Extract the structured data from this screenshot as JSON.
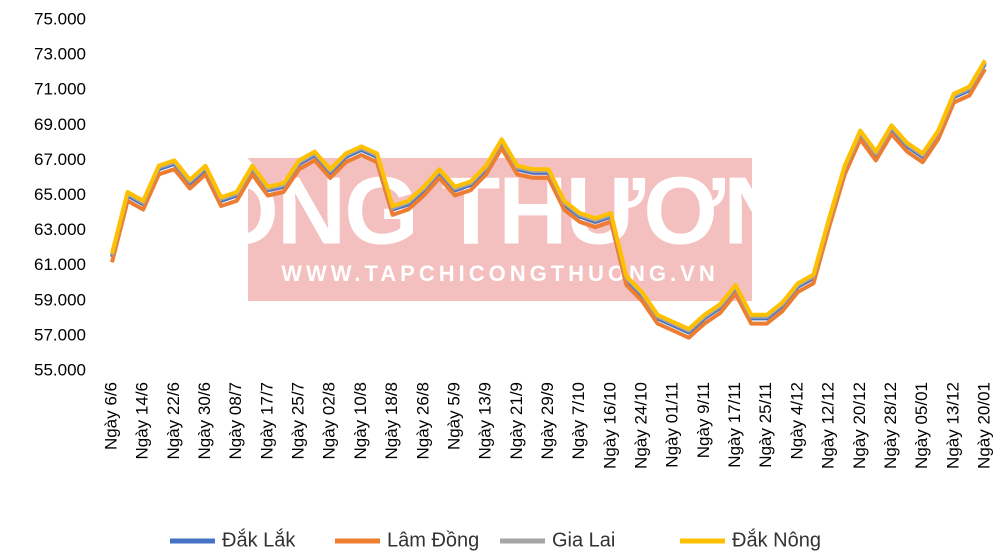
{
  "chart_data": {
    "type": "line",
    "watermark": {
      "title": "CÔNG THƯƠNG",
      "url": "WWW.TAPCHICONGTHUONG.VN"
    },
    "categories": [
      "Ngày 6/6",
      null,
      "Ngày 14/6",
      null,
      "Ngày 22/6",
      null,
      "Ngày 30/6",
      null,
      "Ngày 08/7",
      null,
      "Ngày 17/7",
      null,
      "Ngày 25/7",
      null,
      "Ngày 02/8",
      null,
      "Ngày 10/8",
      null,
      "Ngày 18/8",
      null,
      "Ngày 26/8",
      null,
      "Ngày 5/9",
      null,
      "Ngày 13/9",
      null,
      "Ngày 21/9",
      null,
      "Ngày 29/9",
      null,
      "Ngày 7/10",
      null,
      "Ngày 16/10",
      null,
      "Ngày 24/10",
      null,
      "Ngày 01/11",
      null,
      "Ngày 9/11",
      null,
      "Ngày 17/11",
      null,
      "Ngày 25/11",
      null,
      "Ngày 4/12",
      null,
      "Ngày 12/12",
      null,
      "Ngày 20/12",
      null,
      "Ngày 28/12",
      null,
      "Ngày 05/01",
      null,
      "Ngày 13/12",
      null,
      "Ngày 20/01"
    ],
    "series": [
      {
        "name": "Đắk Lắk",
        "color": "#4472c4",
        "values": [
          61500,
          65000,
          64500,
          66500,
          66800,
          65700,
          66500,
          64700,
          65000,
          66500,
          65300,
          65500,
          66800,
          67300,
          66300,
          67200,
          67600,
          67200,
          64200,
          64500,
          65300,
          66300,
          65300,
          65600,
          66500,
          68000,
          66500,
          66300,
          66300,
          64500,
          63800,
          63500,
          63800,
          60200,
          59300,
          58000,
          57600,
          57200,
          58000,
          58600,
          59700,
          58000,
          58000,
          58700,
          59800,
          60300,
          63500,
          66500,
          68500,
          67300,
          68800,
          67800,
          67200,
          68500,
          70600,
          71000,
          72500
        ]
      },
      {
        "name": "Lâm Đồng",
        "color": "#ed7d31",
        "values": [
          61200,
          64700,
          64200,
          66200,
          66500,
          65400,
          66200,
          64400,
          64700,
          66200,
          65000,
          65200,
          66500,
          67000,
          66000,
          66900,
          67300,
          66900,
          63900,
          64200,
          65000,
          66000,
          65000,
          65300,
          66200,
          67700,
          66200,
          66000,
          66000,
          64200,
          63500,
          63200,
          63500,
          59900,
          59000,
          57700,
          57300,
          56900,
          57700,
          58300,
          59400,
          57700,
          57700,
          58400,
          59500,
          60000,
          63200,
          66200,
          68200,
          67000,
          68500,
          67500,
          66900,
          68200,
          70300,
          70700,
          72200
        ]
      },
      {
        "name": "Gia Lai",
        "color": "#a5a5a5",
        "values": [
          61600,
          65100,
          64600,
          66600,
          66900,
          65800,
          66600,
          64800,
          65100,
          66600,
          65400,
          65600,
          66900,
          67400,
          66400,
          67300,
          67700,
          67300,
          64300,
          64600,
          65400,
          66400,
          65400,
          65700,
          66600,
          68100,
          66600,
          66400,
          66400,
          64600,
          63900,
          63600,
          63900,
          60300,
          59400,
          58100,
          57700,
          57300,
          58100,
          58700,
          59800,
          58100,
          58100,
          58800,
          59900,
          60400,
          63600,
          66600,
          68600,
          67400,
          68900,
          67900,
          67300,
          68600,
          70700,
          71100,
          72600
        ]
      },
      {
        "name": "Đắk Nông",
        "color": "#ffc000",
        "values": [
          61700,
          65200,
          64700,
          66700,
          67000,
          65900,
          66700,
          64900,
          65200,
          66700,
          65500,
          65700,
          67000,
          67500,
          66500,
          67400,
          67800,
          67400,
          64400,
          64700,
          65500,
          66500,
          65500,
          65800,
          66700,
          68200,
          66700,
          66500,
          66500,
          64700,
          64000,
          63700,
          64000,
          60400,
          59500,
          58200,
          57800,
          57400,
          58200,
          58800,
          59900,
          58200,
          58200,
          58900,
          60000,
          60500,
          63700,
          66700,
          68700,
          67500,
          69000,
          68000,
          67400,
          68700,
          70800,
          71200,
          72700
        ]
      }
    ],
    "ylim": [
      55000,
      75000
    ],
    "yticks": [
      {
        "value": 55000,
        "label": "55.000"
      },
      {
        "value": 57000,
        "label": "57.000"
      },
      {
        "value": 59000,
        "label": "59.000"
      },
      {
        "value": 61000,
        "label": "61.000"
      },
      {
        "value": 63000,
        "label": "63.000"
      },
      {
        "value": 65000,
        "label": "65.000"
      },
      {
        "value": 67000,
        "label": "67.000"
      },
      {
        "value": 69000,
        "label": "69.000"
      },
      {
        "value": 71000,
        "label": "71.000"
      },
      {
        "value": 73000,
        "label": "73.000"
      },
      {
        "value": 75000,
        "label": "75.000"
      }
    ],
    "grid": false,
    "legend": "bottom"
  }
}
